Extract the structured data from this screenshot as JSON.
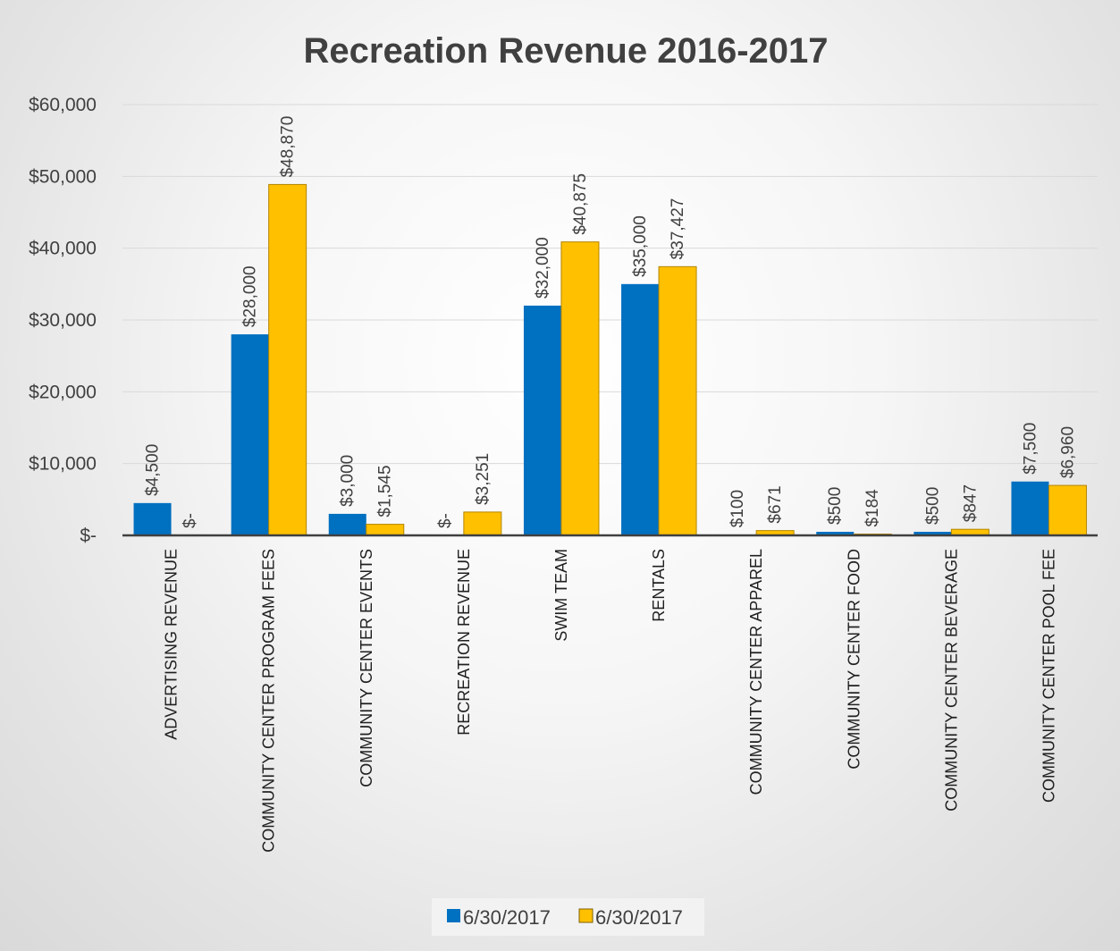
{
  "chart_data": {
    "type": "bar",
    "title": "Recreation Revenue 2016-2017",
    "xlabel": "",
    "ylabel": "",
    "ylim": [
      0,
      60000
    ],
    "yticks": [
      0,
      10000,
      20000,
      30000,
      40000,
      50000,
      60000
    ],
    "ytick_labels": [
      "$-",
      "$10,000",
      "$20,000",
      "$30,000",
      "$40,000",
      "$50,000",
      "$60,000"
    ],
    "grid": true,
    "legend_position": "bottom",
    "categories": [
      "ADVERTISING REVENUE",
      "COMMUNITY CENTER PROGRAM FEES",
      "COMMUNITY CENTER EVENTS",
      "RECREATION REVENUE",
      "SWIM TEAM",
      "RENTALS",
      "COMMUNITY CENTER APPAREL",
      "COMMUNITY CENTER FOOD",
      "COMMUNITY CENTER BEVERAGE",
      "COMMUNITY CENTER POOL FEE"
    ],
    "series": [
      {
        "name": "6/30/2017",
        "color": "#0070C0",
        "values": [
          4500,
          28000,
          3000,
          0,
          32000,
          35000,
          100,
          500,
          500,
          7500
        ],
        "labels": [
          "$4,500",
          "$28,000",
          "$3,000",
          "$-",
          "$32,000",
          "$35,000",
          "$100",
          "$500",
          "$500",
          "$7,500"
        ]
      },
      {
        "name": "6/30/2017",
        "color": "#FFC000",
        "values": [
          0,
          48870,
          1545,
          3251,
          40875,
          37427,
          671,
          184,
          847,
          6960
        ],
        "labels": [
          "$-",
          "$48,870",
          "$1,545",
          "$3,251",
          "$40,875",
          "$37,427",
          "$671",
          "$184",
          "$847",
          "$6,960"
        ]
      }
    ]
  }
}
